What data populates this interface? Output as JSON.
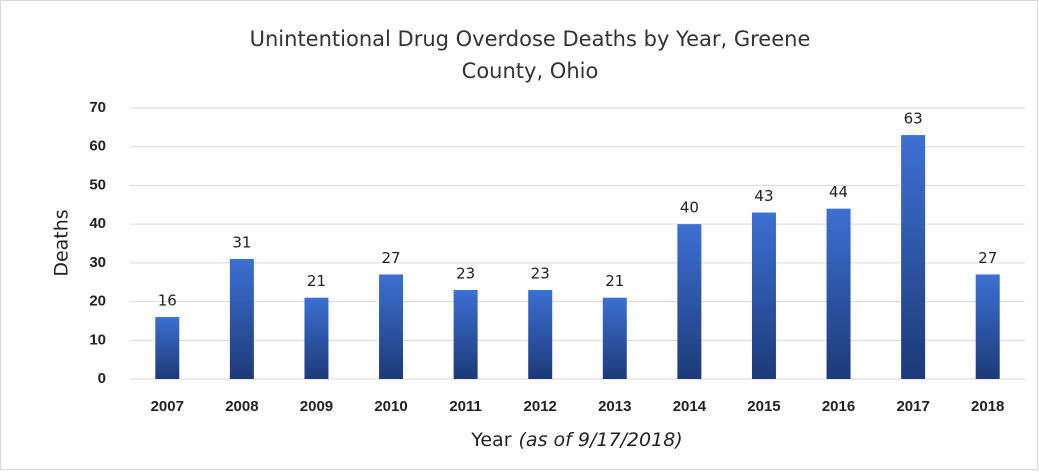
{
  "chart_data": {
    "type": "bar",
    "title_lines": [
      "Unintentional Drug Overdose Deaths by Year, Greene",
      "County, Ohio"
    ],
    "y_label": "Deaths",
    "x_label": "Year",
    "x_label_note": "(as of 9/17/2018)",
    "categories": [
      "2007",
      "2008",
      "2009",
      "2010",
      "2011",
      "2012",
      "2013",
      "2014",
      "2015",
      "2016",
      "2017",
      "2018"
    ],
    "values": [
      16,
      31,
      21,
      27,
      23,
      23,
      21,
      40,
      43,
      44,
      63,
      27
    ],
    "color": "#3c70d2",
    "ylim": [
      0,
      70
    ],
    "yticks": [
      0,
      10,
      20,
      30,
      40,
      50,
      60,
      70
    ],
    "grid": true
  }
}
